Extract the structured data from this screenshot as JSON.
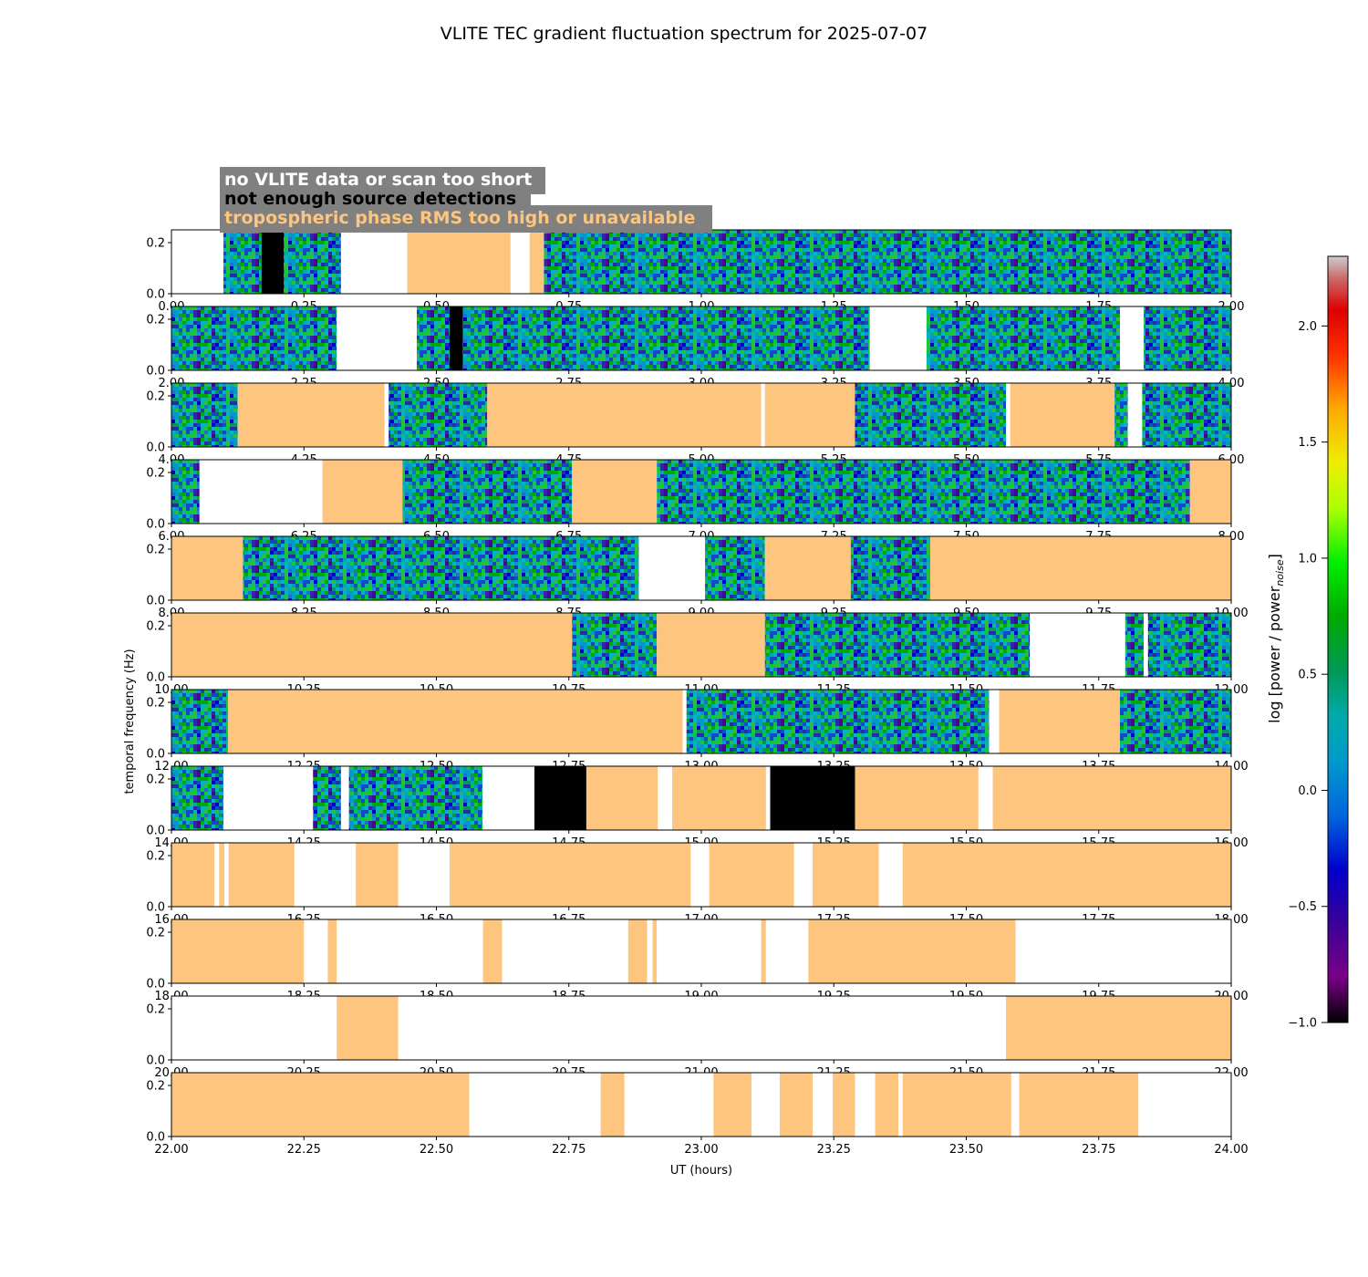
{
  "chart_data": {
    "type": "heatmap",
    "title": "VLITE TEC gradient fluctuation spectrum for 2025-07-07",
    "xlabel": "UT (hours)",
    "ylabel": "temporal frequency (Hz)",
    "ylim": [
      0,
      0.25
    ],
    "ytick_values": [
      0.0,
      0.2
    ],
    "ytick_labels": [
      "0.0",
      "0.2"
    ],
    "colorbar": {
      "label": "log [power / power",
      "label_sub": "noise",
      "label_close": "]",
      "range": [
        -1.0,
        2.3
      ],
      "tick_values": [
        -1.0,
        -0.5,
        0.0,
        0.5,
        1.0,
        1.5,
        2.0
      ],
      "tick_labels": [
        "−1.0",
        "−0.5",
        "0.0",
        "0.5",
        "1.0",
        "1.5",
        "2.0"
      ],
      "colormap": "nipy_spectral"
    },
    "legend": [
      {
        "label": "no VLITE data or scan too short",
        "color": "#ffffff",
        "category": "no-data"
      },
      {
        "label": "not enough source detections",
        "color": "#000000",
        "category": "few-detections"
      },
      {
        "label": "tropospheric phase RMS too high or unavailable",
        "color": "#fdc57e",
        "category": "tropo"
      }
    ],
    "category_colors": {
      "data": "#1f6fd0",
      "none": "#ffffff",
      "black": "#000000",
      "tropo": "#fdc57e"
    },
    "panels": [
      {
        "xlim": [
          0,
          2
        ],
        "xtick_labels": [
          "0.00",
          "0.25",
          "0.50",
          "0.75",
          "1.00",
          "1.25",
          "1.50",
          "1.75",
          "2.00"
        ],
        "segments": [
          [
            0,
            0.098,
            "none"
          ],
          [
            0.098,
            0.17,
            "data"
          ],
          [
            0.17,
            0.212,
            "black"
          ],
          [
            0.212,
            0.32,
            "data"
          ],
          [
            0.32,
            0.445,
            "none"
          ],
          [
            0.445,
            0.64,
            "tropo"
          ],
          [
            0.64,
            0.676,
            "none"
          ],
          [
            0.676,
            0.703,
            "tropo"
          ],
          [
            0.703,
            2,
            "data"
          ]
        ]
      },
      {
        "xlim": [
          2,
          4
        ],
        "xtick_labels": [
          "2.00",
          "2.25",
          "2.50",
          "2.75",
          "3.00",
          "3.25",
          "3.50",
          "3.75",
          "4.00"
        ],
        "segments": [
          [
            2,
            2.312,
            "data"
          ],
          [
            2.312,
            2.463,
            "none"
          ],
          [
            2.463,
            2.525,
            "data"
          ],
          [
            2.525,
            2.55,
            "black"
          ],
          [
            2.55,
            3.318,
            "data"
          ],
          [
            3.318,
            3.425,
            "none"
          ],
          [
            3.425,
            3.79,
            "data"
          ],
          [
            3.79,
            3.835,
            "none"
          ],
          [
            3.835,
            4,
            "data"
          ]
        ]
      },
      {
        "xlim": [
          4,
          6
        ],
        "xtick_labels": [
          "4.00",
          "4.25",
          "4.50",
          "4.75",
          "5.00",
          "5.25",
          "5.50",
          "5.75",
          "6.00"
        ],
        "segments": [
          [
            4,
            4.125,
            "data"
          ],
          [
            4.125,
            4.402,
            "tropo"
          ],
          [
            4.402,
            4.41,
            "none"
          ],
          [
            4.41,
            4.596,
            "data"
          ],
          [
            4.596,
            5.113,
            "tropo"
          ],
          [
            5.113,
            5.12,
            "none"
          ],
          [
            5.12,
            5.29,
            "tropo"
          ],
          [
            5.29,
            5.575,
            "data"
          ],
          [
            5.575,
            5.583,
            "none"
          ],
          [
            5.583,
            5.78,
            "tropo"
          ],
          [
            5.78,
            5.805,
            "data"
          ],
          [
            5.805,
            5.832,
            "none"
          ],
          [
            5.832,
            6,
            "data"
          ]
        ]
      },
      {
        "xlim": [
          6,
          8
        ],
        "xtick_labels": [
          "6.00",
          "6.25",
          "6.50",
          "6.75",
          "7.00",
          "7.25",
          "7.50",
          "7.75",
          "8.00"
        ],
        "segments": [
          [
            6,
            6.053,
            "data"
          ],
          [
            6.053,
            6.285,
            "none"
          ],
          [
            6.285,
            6.436,
            "tropo"
          ],
          [
            6.436,
            6.756,
            "data"
          ],
          [
            6.756,
            6.916,
            "tropo"
          ],
          [
            6.916,
            7.922,
            "data"
          ],
          [
            7.922,
            8,
            "tropo"
          ]
        ]
      },
      {
        "xlim": [
          8,
          10
        ],
        "xtick_labels": [
          "8.00",
          "8.25",
          "8.50",
          "8.75",
          "9.00",
          "9.25",
          "9.50",
          "9.75",
          "10.00"
        ],
        "segments": [
          [
            8,
            8.135,
            "tropo"
          ],
          [
            8.135,
            8.882,
            "data"
          ],
          [
            8.882,
            9.007,
            "none"
          ],
          [
            9.007,
            9.12,
            "data"
          ],
          [
            9.12,
            9.282,
            "tropo"
          ],
          [
            9.282,
            9.432,
            "data"
          ],
          [
            9.432,
            10,
            "tropo"
          ]
        ]
      },
      {
        "xlim": [
          10,
          12
        ],
        "xtick_labels": [
          "10.00",
          "10.25",
          "10.50",
          "10.75",
          "11.00",
          "11.25",
          "11.50",
          "11.75",
          "12.00"
        ],
        "segments": [
          [
            10,
            10.756,
            "tropo"
          ],
          [
            10.756,
            10.916,
            "data"
          ],
          [
            10.916,
            11.12,
            "tropo"
          ],
          [
            11.12,
            11.62,
            "data"
          ],
          [
            11.62,
            11.8,
            "none"
          ],
          [
            11.8,
            11.835,
            "data"
          ],
          [
            11.835,
            11.843,
            "none"
          ],
          [
            11.843,
            12,
            "data"
          ]
        ]
      },
      {
        "xlim": [
          12,
          14
        ],
        "xtick_labels": [
          "12.00",
          "12.25",
          "12.50",
          "12.75",
          "13.00",
          "13.25",
          "13.50",
          "13.75",
          "14.00"
        ],
        "segments": [
          [
            12,
            12.107,
            "data"
          ],
          [
            12.107,
            12.965,
            "tropo"
          ],
          [
            12.965,
            12.972,
            "none"
          ],
          [
            12.972,
            13.543,
            "data"
          ],
          [
            13.543,
            13.562,
            "none"
          ],
          [
            13.562,
            13.79,
            "tropo"
          ],
          [
            13.79,
            14,
            "data"
          ]
        ]
      },
      {
        "xlim": [
          14,
          16
        ],
        "xtick_labels": [
          "14.00",
          "14.25",
          "14.50",
          "14.75",
          "15.00",
          "15.25",
          "15.50",
          "15.75",
          "16.00"
        ],
        "segments": [
          [
            14,
            14.098,
            "data"
          ],
          [
            14.098,
            14.267,
            "none"
          ],
          [
            14.267,
            14.32,
            "data"
          ],
          [
            14.32,
            14.335,
            "none"
          ],
          [
            14.335,
            14.587,
            "data"
          ],
          [
            14.587,
            14.685,
            "none"
          ],
          [
            14.685,
            14.783,
            "black"
          ],
          [
            14.783,
            14.918,
            "tropo"
          ],
          [
            14.918,
            14.945,
            "none"
          ],
          [
            14.945,
            15.122,
            "tropo"
          ],
          [
            15.122,
            15.13,
            "none"
          ],
          [
            15.13,
            15.29,
            "black"
          ],
          [
            15.29,
            15.523,
            "tropo"
          ],
          [
            15.523,
            15.55,
            "none"
          ],
          [
            15.55,
            16,
            "tropo"
          ]
        ]
      },
      {
        "xlim": [
          16,
          18
        ],
        "xtick_labels": [
          "16.00",
          "16.25",
          "16.50",
          "16.75",
          "17.00",
          "17.25",
          "17.50",
          "17.75",
          "18.00"
        ],
        "segments": [
          [
            16,
            16.081,
            "tropo"
          ],
          [
            16.081,
            16.09,
            "none"
          ],
          [
            16.09,
            16.1,
            "tropo"
          ],
          [
            16.1,
            16.108,
            "none"
          ],
          [
            16.108,
            16.232,
            "tropo"
          ],
          [
            16.232,
            16.348,
            "none"
          ],
          [
            16.348,
            16.428,
            "tropo"
          ],
          [
            16.428,
            16.525,
            "none"
          ],
          [
            16.525,
            16.98,
            "tropo"
          ],
          [
            16.98,
            17.015,
            "none"
          ],
          [
            17.015,
            17.175,
            "tropo"
          ],
          [
            17.175,
            17.21,
            "none"
          ],
          [
            17.21,
            17.335,
            "tropo"
          ],
          [
            17.335,
            17.38,
            "none"
          ],
          [
            17.38,
            18,
            "tropo"
          ]
        ]
      },
      {
        "xlim": [
          18,
          20
        ],
        "xtick_labels": [
          "18.00",
          "18.25",
          "18.50",
          "18.75",
          "19.00",
          "19.25",
          "19.50",
          "19.75",
          "20.00"
        ],
        "segments": [
          [
            18,
            18.25,
            "tropo"
          ],
          [
            18.25,
            18.295,
            "none"
          ],
          [
            18.295,
            18.312,
            "tropo"
          ],
          [
            18.312,
            18.588,
            "none"
          ],
          [
            18.588,
            18.624,
            "tropo"
          ],
          [
            18.624,
            18.862,
            "none"
          ],
          [
            18.862,
            18.898,
            "tropo"
          ],
          [
            18.898,
            18.908,
            "none"
          ],
          [
            18.908,
            18.916,
            "tropo"
          ],
          [
            18.916,
            19.113,
            "none"
          ],
          [
            19.113,
            19.122,
            "tropo"
          ],
          [
            19.122,
            19.202,
            "none"
          ],
          [
            19.202,
            19.593,
            "tropo"
          ],
          [
            19.593,
            20,
            "none"
          ]
        ]
      },
      {
        "xlim": [
          20,
          22
        ],
        "xtick_labels": [
          "20.00",
          "20.25",
          "20.50",
          "20.75",
          "21.00",
          "21.25",
          "21.50",
          "21.75",
          "22.00"
        ],
        "segments": [
          [
            20,
            20.312,
            "none"
          ],
          [
            20.312,
            20.428,
            "tropo"
          ],
          [
            20.428,
            21.575,
            "none"
          ],
          [
            21.575,
            22,
            "tropo"
          ]
        ]
      },
      {
        "xlim": [
          22,
          24
        ],
        "xtick_labels": [
          "22.00",
          "22.25",
          "22.50",
          "22.75",
          "23.00",
          "23.25",
          "23.50",
          "23.75",
          "24.00"
        ],
        "segments": [
          [
            22,
            22.562,
            "tropo"
          ],
          [
            22.562,
            22.81,
            "none"
          ],
          [
            22.81,
            22.855,
            "tropo"
          ],
          [
            22.855,
            23.023,
            "none"
          ],
          [
            23.023,
            23.095,
            "tropo"
          ],
          [
            23.095,
            23.148,
            "none"
          ],
          [
            23.148,
            23.21,
            "tropo"
          ],
          [
            23.21,
            23.248,
            "none"
          ],
          [
            23.248,
            23.29,
            "tropo"
          ],
          [
            23.29,
            23.328,
            "none"
          ],
          [
            23.328,
            23.372,
            "tropo"
          ],
          [
            23.372,
            23.38,
            "none"
          ],
          [
            23.38,
            23.585,
            "tropo"
          ],
          [
            23.585,
            23.6,
            "none"
          ],
          [
            23.6,
            23.825,
            "tropo"
          ],
          [
            23.825,
            24,
            "none"
          ]
        ]
      }
    ]
  }
}
